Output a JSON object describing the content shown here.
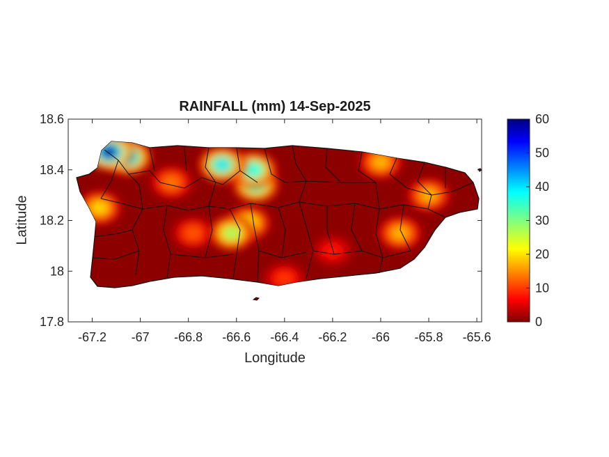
{
  "chart_data": {
    "type": "heatmap",
    "title": "RAINFALL (mm) 14-Sep-2025",
    "xlabel": "Longitude",
    "ylabel": "Latitude",
    "xlim": [
      -67.3,
      -65.58
    ],
    "ylim": [
      17.8,
      18.6
    ],
    "xticks": [
      "-67.2",
      "-67",
      "-66.8",
      "-66.6",
      "-66.4",
      "-66.2",
      "-66",
      "-65.8",
      "-65.6"
    ],
    "xtick_values": [
      -67.2,
      -67.0,
      -66.8,
      -66.6,
      -66.4,
      -66.2,
      -66.0,
      -65.8,
      -65.6
    ],
    "yticks": [
      "18.6",
      "18.4",
      "18.2",
      "18",
      "17.8"
    ],
    "ytick_values": [
      18.6,
      18.4,
      18.2,
      18.0,
      17.8
    ],
    "colorbar": {
      "range": [
        0,
        60
      ],
      "ticks": [
        "0",
        "10",
        "20",
        "30",
        "40",
        "50",
        "60"
      ],
      "tick_values": [
        0,
        10,
        20,
        30,
        40,
        50,
        60
      ],
      "colormap": "jet"
    },
    "hotspots": [
      {
        "lon": -67.13,
        "lat": 18.47,
        "value": 58
      },
      {
        "lon": -67.05,
        "lat": 18.45,
        "value": 42
      },
      {
        "lon": -66.66,
        "lat": 18.42,
        "value": 40
      },
      {
        "lon": -66.53,
        "lat": 18.4,
        "value": 38
      },
      {
        "lon": -66.52,
        "lat": 18.34,
        "value": 35
      },
      {
        "lon": -66.62,
        "lat": 18.15,
        "value": 28
      },
      {
        "lon": -66.55,
        "lat": 18.19,
        "value": 22
      },
      {
        "lon": -67.17,
        "lat": 18.25,
        "value": 20
      },
      {
        "lon": -66.0,
        "lat": 18.43,
        "value": 18
      },
      {
        "lon": -65.8,
        "lat": 18.3,
        "value": 18
      },
      {
        "lon": -65.92,
        "lat": 18.15,
        "value": 18
      },
      {
        "lon": -66.87,
        "lat": 18.35,
        "value": 14
      },
      {
        "lon": -66.78,
        "lat": 18.15,
        "value": 12
      },
      {
        "lon": -66.4,
        "lat": 17.97,
        "value": 10
      },
      {
        "lon": -66.2,
        "lat": 18.08,
        "value": 8
      }
    ]
  }
}
